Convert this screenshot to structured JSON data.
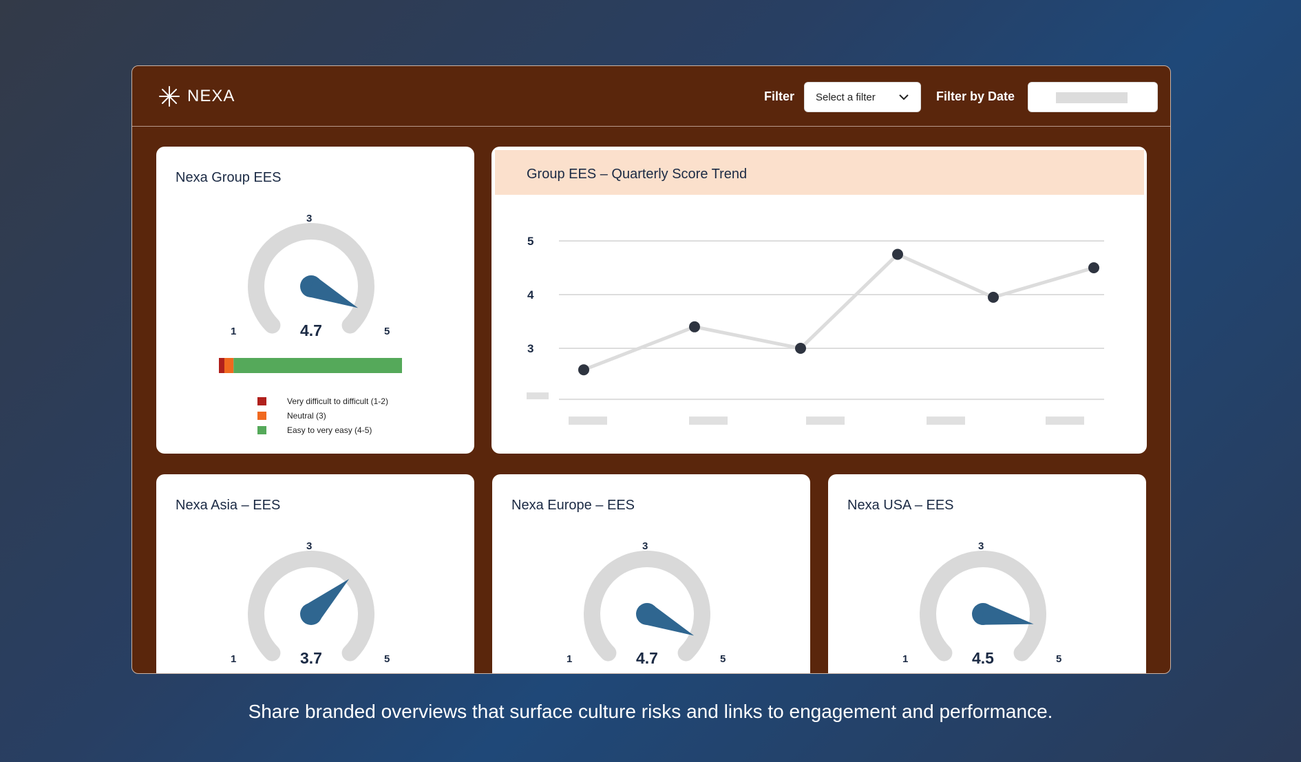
{
  "header": {
    "logo_text": "NEXA",
    "filter_label": "Filter",
    "filter_select_value": "Select a filter",
    "date_label": "Filter by Date"
  },
  "group_card": {
    "title": "Nexa Group EES",
    "gauge": {
      "min_label": "1",
      "mid_label": "3",
      "max_label": "5",
      "value": 4.7,
      "value_label": "4.7"
    },
    "distribution_bar": [
      {
        "label": "Very difficult to difficult (1-2)",
        "color": "#b0201c",
        "share": 0.03
      },
      {
        "label": "Neutral (3)",
        "color": "#f0691f",
        "share": 0.05
      },
      {
        "label": "Easy to very easy (4-5)",
        "color": "#55a95a",
        "share": 0.92
      }
    ]
  },
  "trend_card": {
    "title": "Group EES – Quarterly Score Trend",
    "chart_data": {
      "type": "line",
      "y_ticks": [
        "5",
        "4",
        "3"
      ],
      "ylim": [
        2,
        5
      ],
      "values": [
        2.6,
        3.4,
        3.0,
        4.75,
        3.95,
        4.5
      ],
      "line_color": "#dcdcdc",
      "marker_color": "#2e3440",
      "grid": true
    }
  },
  "regions": [
    {
      "title": "Nexa Asia – EES",
      "min_label": "1",
      "mid_label": "3",
      "max_label": "5",
      "value": 3.7,
      "value_label": "3.7"
    },
    {
      "title": "Nexa Europe – EES",
      "min_label": "1",
      "mid_label": "3",
      "max_label": "5",
      "value": 4.7,
      "value_label": "4.7"
    },
    {
      "title": "Nexa USA – EES",
      "min_label": "1",
      "mid_label": "3",
      "max_label": "5",
      "value": 4.5,
      "value_label": "4.5"
    }
  ],
  "caption": "Share branded overviews that surface culture risks and links to engagement and performance.",
  "colors": {
    "gauge_track": "#d9d9d9",
    "needle": "#2f6690",
    "app_bg": "#5a260c"
  }
}
